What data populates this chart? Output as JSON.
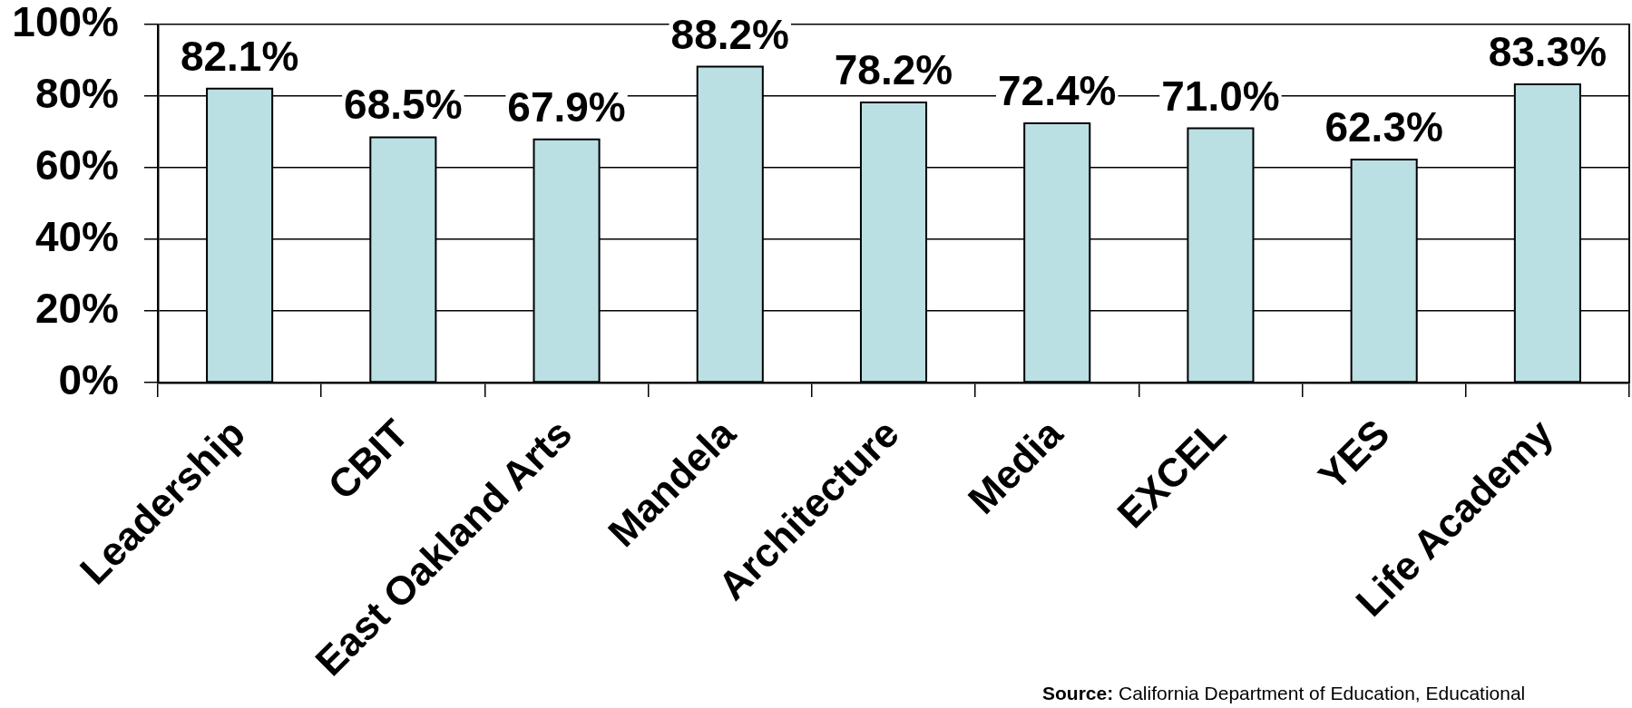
{
  "chart_data": {
    "type": "bar",
    "categories": [
      "Leadership",
      "CBIT",
      "East Oakland Arts",
      "Mandela",
      "Architecture",
      "Media",
      "EXCEL",
      "YES",
      "Life Academy"
    ],
    "values": [
      82.1,
      68.5,
      67.9,
      88.2,
      78.2,
      72.4,
      71.0,
      62.3,
      83.3
    ],
    "value_labels": [
      "82.1%",
      "68.5%",
      "67.9%",
      "88.2%",
      "78.2%",
      "72.4%",
      "71.0%",
      "62.3%",
      "83.3%"
    ],
    "color": "#bae0e3",
    "ylim": [
      0,
      100
    ],
    "yticks": [
      {
        "value": 0,
        "label": "0%"
      },
      {
        "value": 20,
        "label": "20%"
      },
      {
        "value": 40,
        "label": "40%"
      },
      {
        "value": 60,
        "label": "60%"
      },
      {
        "value": 80,
        "label": "80%"
      },
      {
        "value": 100,
        "label": "100%"
      }
    ],
    "grid": "y",
    "annotations": [
      "Source: California Department of Education, Educational"
    ]
  }
}
